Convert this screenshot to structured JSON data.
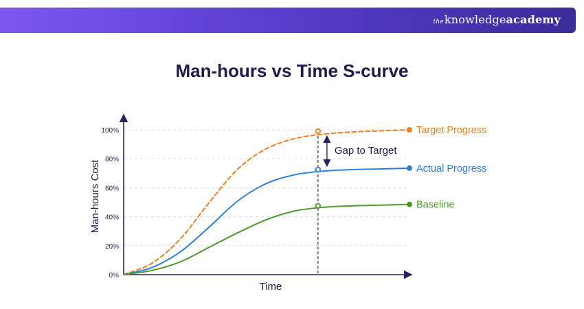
{
  "brand": {
    "prefix": "the",
    "name": "knowledge",
    "suffix": "academy"
  },
  "colors": {
    "banner_start": "#7b58f0",
    "banner_end": "#3b2b9a",
    "title": "#22194d",
    "axis": "#2a2160",
    "target": "#f07e1c",
    "actual": "#2a7de1",
    "baseline": "#4d9a2a",
    "grid": "#d9d9d9"
  },
  "chart_data": {
    "type": "line",
    "title": "Man-hours vs Time S-curve",
    "xlabel": "Time",
    "ylabel": "Man-hours Cost",
    "ylim": [
      0,
      100
    ],
    "y_ticks": [
      "0%",
      "20%",
      "40%",
      "60%",
      "80%",
      "100%"
    ],
    "grid": true,
    "x": [
      0,
      10,
      20,
      30,
      40,
      50,
      60,
      70,
      80,
      90,
      100
    ],
    "series": [
      {
        "name": "Target Progress",
        "style": "dashed",
        "color": "#f07e1c",
        "values": [
          0,
          8,
          25,
          50,
          73,
          87,
          94,
          97,
          98.5,
          99.3,
          100
        ]
      },
      {
        "name": "Actual Progress",
        "style": "solid",
        "color": "#2a7de1",
        "values": [
          0,
          5,
          16,
          33,
          51,
          63,
          69,
          71.5,
          72.5,
          73,
          73.5
        ]
      },
      {
        "name": "Baseline",
        "style": "solid",
        "color": "#4d9a2a",
        "values": [
          0,
          3,
          9,
          19,
          29,
          38,
          44,
          46.5,
          47.5,
          48,
          48.5
        ]
      }
    ],
    "annotation": {
      "label": "Gap to Target",
      "at_x": 68,
      "target_value": 99,
      "actual_value": 72.5,
      "baseline_value": 47.5
    }
  }
}
